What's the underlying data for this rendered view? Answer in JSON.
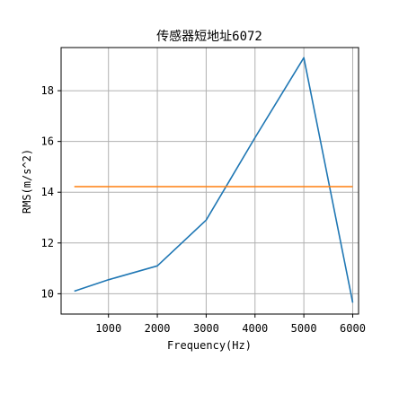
{
  "chart_data": {
    "type": "line",
    "title": "传感器短地址6072",
    "xlabel": "Frequency(Hz)",
    "ylabel": "RMS(m/s^2)",
    "xlim": [
      30,
      6120
    ],
    "ylim": [
      9.2,
      19.7
    ],
    "xticks": [
      1000,
      2000,
      3000,
      4000,
      5000,
      6000
    ],
    "yticks": [
      10,
      12,
      14,
      16,
      18
    ],
    "grid": true,
    "series": [
      {
        "color": "#1f77b4",
        "x": [
          300,
          1000,
          2000,
          3000,
          4000,
          5000,
          6000
        ],
        "y": [
          10.1,
          10.55,
          11.1,
          12.9,
          16.15,
          19.3,
          9.65
        ]
      },
      {
        "color": "#ff7f0e",
        "x": [
          300,
          6000
        ],
        "y": [
          14.22,
          14.22
        ]
      }
    ]
  }
}
